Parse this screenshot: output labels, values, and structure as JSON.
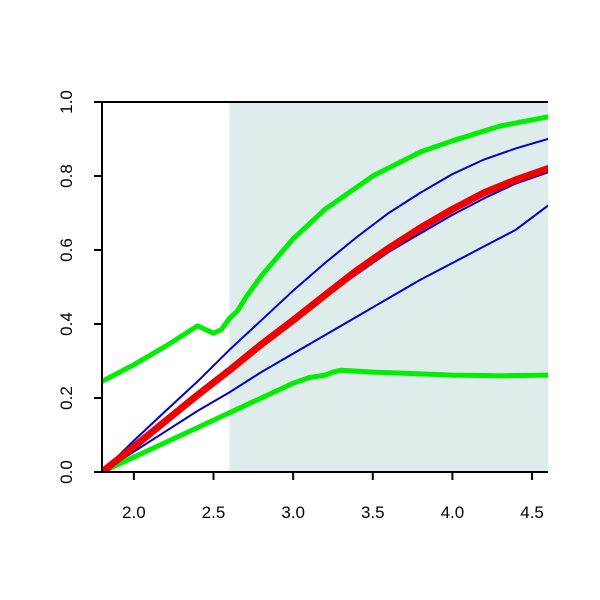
{
  "chart_data": {
    "type": "line",
    "title": "",
    "xlabel": "",
    "ylabel": "",
    "xlim": [
      1.8,
      4.6
    ],
    "ylim": [
      0.0,
      1.0
    ],
    "x_ticks": [
      {
        "value": 2.0,
        "label": "2.0"
      },
      {
        "value": 2.5,
        "label": "2.5"
      },
      {
        "value": 3.0,
        "label": "3.0"
      },
      {
        "value": 3.5,
        "label": "3.5"
      },
      {
        "value": 4.0,
        "label": "4.0"
      },
      {
        "value": 4.5,
        "label": "4.5"
      }
    ],
    "y_ticks": [
      {
        "value": 0.0,
        "label": "0.0"
      },
      {
        "value": 0.2,
        "label": "0.2"
      },
      {
        "value": 0.4,
        "label": "0.4"
      },
      {
        "value": 0.6,
        "label": "0.6"
      },
      {
        "value": 0.8,
        "label": "0.8"
      },
      {
        "value": 1.0,
        "label": "1.0"
      }
    ],
    "shaded_region": {
      "x_from": 2.6,
      "x_to": 4.6,
      "color": "#deecec"
    },
    "colors": {
      "green": "#00ee00",
      "blue": "#0000cc",
      "red": "#ee0000"
    },
    "series": [
      {
        "color": "green",
        "width": 5,
        "x": [
          1.8,
          2.0,
          2.2,
          2.4,
          2.5,
          2.55,
          2.6,
          2.65,
          2.7,
          2.8,
          3.0,
          3.2,
          3.5,
          3.8,
          4.0,
          4.3,
          4.6
        ],
        "y": [
          0.245,
          0.29,
          0.34,
          0.395,
          0.375,
          0.385,
          0.415,
          0.435,
          0.47,
          0.53,
          0.63,
          0.71,
          0.8,
          0.865,
          0.895,
          0.935,
          0.96
        ]
      },
      {
        "color": "green",
        "width": 5,
        "x": [
          1.8,
          2.0,
          2.2,
          2.4,
          2.6,
          2.8,
          3.0,
          3.1,
          3.2,
          3.25,
          3.3,
          3.5,
          3.8,
          4.0,
          4.3,
          4.6
        ],
        "y": [
          0.0,
          0.04,
          0.08,
          0.12,
          0.16,
          0.2,
          0.24,
          0.255,
          0.262,
          0.27,
          0.275,
          0.27,
          0.265,
          0.262,
          0.26,
          0.262
        ]
      },
      {
        "color": "blue",
        "width": 2,
        "x": [
          1.8,
          2.0,
          2.2,
          2.4,
          2.6,
          2.8,
          3.0,
          3.2,
          3.4,
          3.6,
          3.8,
          4.0,
          4.2,
          4.4,
          4.6
        ],
        "y": [
          0.0,
          0.085,
          0.165,
          0.245,
          0.33,
          0.41,
          0.49,
          0.565,
          0.635,
          0.7,
          0.755,
          0.805,
          0.845,
          0.875,
          0.9
        ]
      },
      {
        "color": "blue",
        "width": 2,
        "x": [
          1.8,
          2.0,
          2.2,
          2.4,
          2.6,
          2.8,
          3.0,
          3.2,
          3.4,
          3.6,
          3.8,
          4.0,
          4.2,
          4.4,
          4.6
        ],
        "y": [
          0.0,
          0.07,
          0.14,
          0.21,
          0.275,
          0.345,
          0.41,
          0.475,
          0.535,
          0.595,
          0.645,
          0.695,
          0.74,
          0.78,
          0.81
        ]
      },
      {
        "color": "blue",
        "width": 2,
        "x": [
          1.8,
          2.0,
          2.2,
          2.4,
          2.6,
          2.8,
          3.0,
          3.2,
          3.4,
          3.6,
          3.8,
          4.0,
          4.2,
          4.4,
          4.6
        ],
        "y": [
          0.0,
          0.055,
          0.11,
          0.165,
          0.215,
          0.27,
          0.32,
          0.37,
          0.42,
          0.47,
          0.52,
          0.565,
          0.61,
          0.655,
          0.72
        ]
      },
      {
        "color": "red",
        "width": 7,
        "x": [
          1.8,
          2.0,
          2.2,
          2.4,
          2.6,
          2.8,
          3.0,
          3.2,
          3.4,
          3.6,
          3.8,
          4.0,
          4.2,
          4.4,
          4.6
        ],
        "y": [
          0.0,
          0.068,
          0.138,
          0.208,
          0.275,
          0.345,
          0.41,
          0.478,
          0.545,
          0.605,
          0.66,
          0.71,
          0.755,
          0.79,
          0.82
        ]
      }
    ]
  }
}
